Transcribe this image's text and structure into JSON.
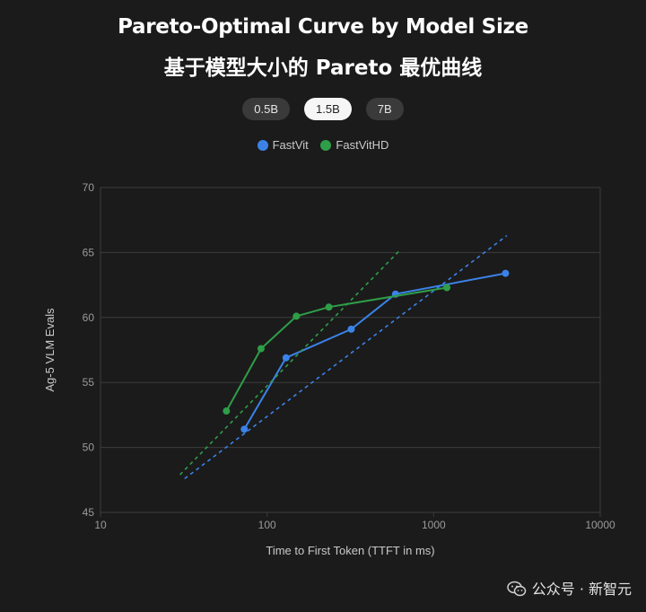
{
  "title_line1": "Pareto-Optimal Curve by Model Size",
  "title_line2": "基于模型大小的 Pareto 最优曲线",
  "tabs": [
    {
      "label": "0.5B",
      "active": false
    },
    {
      "label": "1.5B",
      "active": true
    },
    {
      "label": "7B",
      "active": false
    }
  ],
  "legend": [
    {
      "label": "FastVit",
      "color": "#3b82e8"
    },
    {
      "label": "FastVitHD",
      "color": "#2e9e48"
    }
  ],
  "watermark": "公众号 · 新智元",
  "colors": {
    "background": "#1b1b1b",
    "grid": "#3c3c3c",
    "axis_text": "#9a9a9a"
  },
  "chart_data": {
    "type": "line",
    "xlabel": "Time to First Token (TTFT in ms)",
    "ylabel": "Ag-5 VLM Evals",
    "xscale": "log",
    "xlim": [
      10,
      10000
    ],
    "ylim": [
      45,
      70
    ],
    "x_ticks": [
      10,
      100,
      1000,
      10000
    ],
    "x_tick_labels": [
      "10",
      "100",
      "1000",
      "10000"
    ],
    "y_ticks": [
      45,
      50,
      55,
      60,
      65,
      70
    ],
    "y_tick_labels": [
      "45",
      "50",
      "55",
      "60",
      "65",
      "70"
    ],
    "grid": "horizontal",
    "series": [
      {
        "name": "FastVit",
        "color": "#3b82e8",
        "points": [
          [
            73,
            51.4
          ],
          [
            130,
            56.9
          ],
          [
            320,
            59.1
          ],
          [
            590,
            61.8
          ],
          [
            2700,
            63.4
          ]
        ],
        "trend": [
          [
            32,
            47.6
          ],
          [
            2750,
            66.3
          ]
        ]
      },
      {
        "name": "FastVitHD",
        "color": "#2e9e48",
        "points": [
          [
            57,
            52.8
          ],
          [
            92,
            57.6
          ],
          [
            150,
            60.1
          ],
          [
            235,
            60.8
          ],
          [
            1200,
            62.3
          ]
        ],
        "trend": [
          [
            30,
            47.9
          ],
          [
            630,
            65.2
          ]
        ]
      }
    ]
  }
}
